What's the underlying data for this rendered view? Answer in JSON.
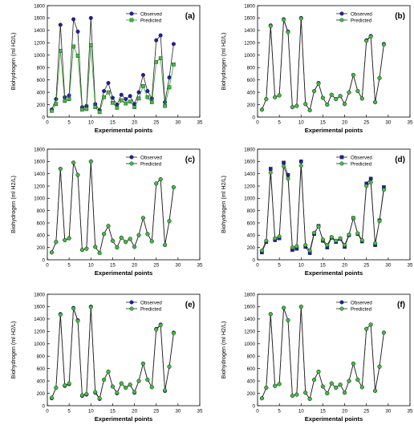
{
  "figure": {
    "panel_labels": [
      "(a)",
      "(b)",
      "(c)",
      "(d)",
      "(e)",
      "(f)"
    ]
  },
  "colors": {
    "observed": "#1f1fa8",
    "predicted": "#3fbf3f",
    "predicted_a_line": "#2e9c2e",
    "line": "#222222"
  },
  "chart_data": [
    {
      "type": "line",
      "panel": "(a)",
      "xlabel": "Experimental points",
      "ylabel": "Biohydrogen (ml H2/L)",
      "xlim": [
        0,
        35
      ],
      "ylim": [
        0,
        1800
      ],
      "xticks": [
        0,
        5,
        10,
        15,
        20,
        25,
        30,
        35
      ],
      "yticks": [
        0,
        200,
        400,
        600,
        800,
        1000,
        1200,
        1400,
        1600,
        1800
      ],
      "legend": "top-right",
      "grid": false,
      "x": [
        1,
        2,
        3,
        4,
        5,
        6,
        7,
        8,
        9,
        10,
        11,
        12,
        13,
        14,
        15,
        16,
        17,
        18,
        19,
        20,
        21,
        22,
        23,
        24,
        25,
        26,
        27,
        28,
        29
      ],
      "series": [
        {
          "name": "Observed",
          "marker": "circle",
          "values": [
            120,
            290,
            1490,
            320,
            350,
            1580,
            1380,
            160,
            180,
            1600,
            210,
            110,
            420,
            550,
            310,
            200,
            360,
            290,
            340,
            210,
            400,
            680,
            420,
            300,
            1240,
            1320,
            240,
            640,
            1180
          ]
        },
        {
          "name": "Predicted",
          "marker": "square",
          "values": [
            100,
            210,
            1070,
            260,
            290,
            1140,
            990,
            120,
            130,
            1160,
            160,
            80,
            320,
            400,
            230,
            150,
            270,
            220,
            250,
            160,
            300,
            500,
            320,
            240,
            890,
            950,
            180,
            480,
            850
          ]
        }
      ]
    },
    {
      "type": "line",
      "panel": "(b)",
      "xlabel": "Experimental points",
      "ylabel": "Biohydrogen (ml H2/L)",
      "xlim": [
        0,
        35
      ],
      "ylim": [
        0,
        1800
      ],
      "xticks": [
        0,
        5,
        10,
        15,
        20,
        25,
        30,
        35
      ],
      "yticks": [
        0,
        200,
        400,
        600,
        800,
        1000,
        1200,
        1400,
        1600,
        1800
      ],
      "legend": "top-right",
      "grid": false,
      "x": [
        1,
        2,
        3,
        4,
        5,
        6,
        7,
        8,
        9,
        10,
        11,
        12,
        13,
        14,
        15,
        16,
        17,
        18,
        19,
        20,
        21,
        22,
        23,
        24,
        25,
        26,
        27,
        28,
        29
      ],
      "series": [
        {
          "name": "Observed",
          "marker": "circle",
          "values": [
            120,
            290,
            1480,
            320,
            350,
            1580,
            1380,
            160,
            180,
            1600,
            210,
            110,
            420,
            550,
            310,
            200,
            360,
            290,
            340,
            210,
            400,
            680,
            420,
            300,
            1240,
            1310,
            240,
            630,
            1180
          ]
        },
        {
          "name": "Predicted",
          "marker": "circle",
          "values": [
            120,
            290,
            1470,
            320,
            350,
            1570,
            1370,
            160,
            180,
            1590,
            210,
            110,
            420,
            540,
            310,
            200,
            360,
            290,
            340,
            210,
            400,
            680,
            420,
            300,
            1230,
            1300,
            240,
            630,
            1170
          ]
        }
      ]
    },
    {
      "type": "line",
      "panel": "(c)",
      "xlabel": "Experimental points",
      "ylabel": "Biohydrogen (ml H2/L)",
      "xlim": [
        0,
        35
      ],
      "ylim": [
        0,
        1800
      ],
      "xticks": [
        0,
        5,
        10,
        15,
        20,
        25,
        30,
        35
      ],
      "yticks": [
        0,
        200,
        400,
        600,
        800,
        1000,
        1200,
        1400,
        1600,
        1800
      ],
      "legend": "top-right",
      "grid": false,
      "x": [
        1,
        2,
        3,
        4,
        5,
        6,
        7,
        8,
        9,
        10,
        11,
        12,
        13,
        14,
        15,
        16,
        17,
        18,
        19,
        20,
        21,
        22,
        23,
        24,
        25,
        26,
        27,
        28,
        29
      ],
      "series": [
        {
          "name": "Observed",
          "marker": "circle",
          "values": [
            120,
            290,
            1480,
            320,
            350,
            1580,
            1380,
            160,
            180,
            1600,
            210,
            110,
            420,
            550,
            310,
            200,
            360,
            290,
            340,
            210,
            400,
            680,
            420,
            300,
            1240,
            1310,
            240,
            630,
            1180
          ]
        },
        {
          "name": "Predicted",
          "marker": "circle",
          "values": [
            120,
            290,
            1480,
            320,
            350,
            1580,
            1380,
            160,
            180,
            1600,
            210,
            110,
            420,
            550,
            310,
            200,
            360,
            290,
            340,
            210,
            400,
            680,
            420,
            300,
            1240,
            1310,
            240,
            630,
            1180
          ]
        }
      ]
    },
    {
      "type": "line",
      "panel": "(d)",
      "xlabel": "Experimental points",
      "ylabel": "Biohydrogen (ml H2/L)",
      "xlim": [
        0,
        35
      ],
      "ylim": [
        0,
        1800
      ],
      "xticks": [
        0,
        5,
        10,
        15,
        20,
        25,
        30,
        35
      ],
      "yticks": [
        0,
        200,
        400,
        600,
        800,
        1000,
        1200,
        1400,
        1600,
        1800
      ],
      "legend": "top-right",
      "grid": false,
      "x": [
        1,
        2,
        3,
        4,
        5,
        6,
        7,
        8,
        9,
        10,
        11,
        12,
        13,
        14,
        15,
        16,
        17,
        18,
        19,
        20,
        21,
        22,
        23,
        24,
        25,
        26,
        27,
        28,
        29
      ],
      "series": [
        {
          "name": "Observed",
          "marker": "square",
          "values": [
            120,
            290,
            1480,
            320,
            350,
            1580,
            1380,
            160,
            180,
            1600,
            210,
            110,
            420,
            550,
            310,
            200,
            360,
            290,
            340,
            210,
            400,
            680,
            420,
            300,
            1240,
            1320,
            240,
            640,
            1180
          ]
        },
        {
          "name": "Predicted",
          "marker": "circle",
          "values": [
            150,
            310,
            1420,
            350,
            380,
            1520,
            1320,
            200,
            220,
            1530,
            240,
            150,
            440,
            540,
            330,
            240,
            370,
            310,
            350,
            240,
            410,
            680,
            430,
            320,
            1200,
            1260,
            270,
            630,
            1140
          ]
        }
      ]
    },
    {
      "type": "line",
      "panel": "(e)",
      "xlabel": "Experimental points",
      "ylabel": "Biohydrogen (ml H2/L)",
      "xlim": [
        0,
        35
      ],
      "ylim": [
        0,
        1800
      ],
      "xticks": [
        0,
        5,
        10,
        15,
        20,
        25,
        30,
        35
      ],
      "yticks": [
        0,
        200,
        400,
        600,
        800,
        1000,
        1200,
        1400,
        1600,
        1800
      ],
      "legend": "top-right",
      "grid": false,
      "x": [
        1,
        2,
        3,
        4,
        5,
        6,
        7,
        8,
        9,
        10,
        11,
        12,
        13,
        14,
        15,
        16,
        17,
        18,
        19,
        20,
        21,
        22,
        23,
        24,
        25,
        26,
        27,
        28,
        29
      ],
      "series": [
        {
          "name": "Observed",
          "marker": "circle",
          "values": [
            120,
            290,
            1480,
            320,
            350,
            1580,
            1380,
            160,
            180,
            1600,
            210,
            110,
            420,
            550,
            310,
            200,
            360,
            290,
            340,
            210,
            400,
            680,
            420,
            300,
            1240,
            1310,
            240,
            630,
            1180
          ]
        },
        {
          "name": "Predicted",
          "marker": "circle",
          "values": [
            130,
            290,
            1470,
            330,
            360,
            1570,
            1370,
            170,
            190,
            1590,
            220,
            120,
            420,
            550,
            310,
            210,
            360,
            290,
            340,
            220,
            400,
            680,
            420,
            300,
            1230,
            1300,
            250,
            630,
            1170
          ]
        }
      ]
    },
    {
      "type": "line",
      "panel": "(f)",
      "xlabel": "Experimental points",
      "ylabel": "Biohydrogen (ml H2/L)",
      "xlim": [
        0,
        35
      ],
      "ylim": [
        0,
        1800
      ],
      "xticks": [
        0,
        5,
        10,
        15,
        20,
        25,
        30,
        35
      ],
      "yticks": [
        0,
        200,
        400,
        600,
        800,
        1000,
        1200,
        1400,
        1600,
        1800
      ],
      "legend": "top-right",
      "grid": false,
      "x": [
        1,
        2,
        3,
        4,
        5,
        6,
        7,
        8,
        9,
        10,
        11,
        12,
        13,
        14,
        15,
        16,
        17,
        18,
        19,
        20,
        21,
        22,
        23,
        24,
        25,
        26,
        27,
        28,
        29
      ],
      "series": [
        {
          "name": "Observed",
          "marker": "circle",
          "values": [
            120,
            290,
            1480,
            320,
            350,
            1580,
            1380,
            160,
            180,
            1600,
            210,
            110,
            420,
            550,
            310,
            200,
            360,
            290,
            340,
            210,
            400,
            680,
            420,
            300,
            1240,
            1310,
            240,
            630,
            1180
          ]
        },
        {
          "name": "Predicted",
          "marker": "circle",
          "values": [
            120,
            290,
            1480,
            320,
            350,
            1580,
            1380,
            160,
            180,
            1600,
            210,
            110,
            420,
            550,
            310,
            200,
            360,
            290,
            340,
            210,
            400,
            680,
            420,
            300,
            1240,
            1310,
            240,
            630,
            1180
          ]
        }
      ]
    }
  ]
}
